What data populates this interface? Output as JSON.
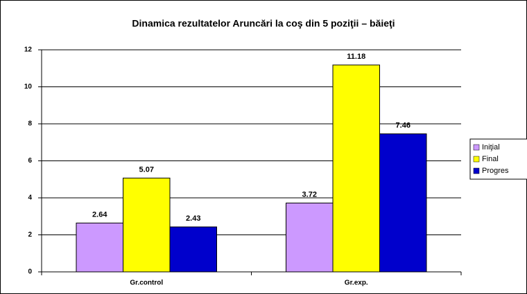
{
  "chart_data": {
    "type": "bar",
    "title": "Dinamica rezultatelor Aruncări la coş din 5 poziţii – băieţi",
    "categories": [
      "Gr.control",
      "Gr.exp."
    ],
    "series": [
      {
        "name": "Iniţial",
        "color": "#cc99ff",
        "values": [
          2.64,
          3.72
        ]
      },
      {
        "name": "Final",
        "color": "#ffff00",
        "values": [
          5.07,
          11.18
        ]
      },
      {
        "name": "Progres",
        "color": "#0000cc",
        "values": [
          2.43,
          7.46
        ]
      }
    ],
    "ylim": [
      0,
      12
    ],
    "yticks": [
      0,
      2,
      4,
      6,
      8,
      10,
      12
    ],
    "grid": true,
    "legend": "right"
  }
}
